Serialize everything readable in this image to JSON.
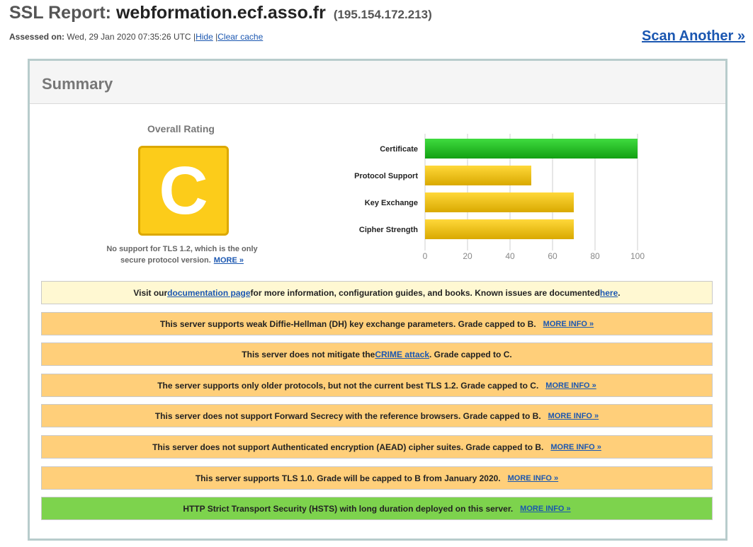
{
  "header": {
    "title_prefix": "SSL Report:",
    "hostname": "webformation.ecf.asso.fr",
    "ip": "(195.154.172.213)",
    "assessed_label": "Assessed on:",
    "assessed_value": "Wed, 29 Jan 2020 07:35:26 UTC",
    "separator": "|",
    "hide_link": "Hide",
    "clear_cache_link": "Clear cache",
    "scan_another": "Scan Another »"
  },
  "summary": {
    "title": "Summary",
    "overall_rating_label": "Overall Rating",
    "grade": "C",
    "grade_color": "#fccc1a",
    "grade_note": "No support for TLS 1.2, which is the only secure protocol version.",
    "grade_more": "MORE »"
  },
  "chart_data": {
    "type": "bar",
    "orientation": "horizontal",
    "categories": [
      "Certificate",
      "Protocol Support",
      "Key Exchange",
      "Cipher Strength"
    ],
    "values": [
      100,
      50,
      70,
      70
    ],
    "colors": [
      "#1cb81c",
      "#e6b800",
      "#e6b800",
      "#e6b800"
    ],
    "xlim": [
      0,
      100
    ],
    "ticks": [
      0,
      20,
      40,
      60,
      80,
      100
    ],
    "grid": true
  },
  "notices": [
    {
      "type": "info",
      "segments": [
        {
          "text": "Visit our "
        },
        {
          "text": "documentation page",
          "link": true
        },
        {
          "text": " for more information, configuration guides, and books. Known issues are documented "
        },
        {
          "text": "here",
          "link": true
        },
        {
          "text": "."
        }
      ]
    },
    {
      "type": "warn",
      "segments": [
        {
          "text": "This server supports weak Diffie-Hellman (DH) key exchange parameters. Grade capped to B."
        }
      ],
      "more": "MORE INFO »"
    },
    {
      "type": "warn",
      "segments": [
        {
          "text": "This server does not mitigate the "
        },
        {
          "text": "CRIME attack",
          "link": true
        },
        {
          "text": ". Grade capped to C."
        }
      ]
    },
    {
      "type": "warn",
      "segments": [
        {
          "text": "The server supports only older protocols, but not the current best TLS 1.2. Grade capped to C."
        }
      ],
      "more": "MORE INFO »"
    },
    {
      "type": "warn",
      "segments": [
        {
          "text": "This server does not support Forward Secrecy with the reference browsers. Grade capped to B."
        }
      ],
      "more": "MORE INFO »"
    },
    {
      "type": "warn",
      "segments": [
        {
          "text": "This server does not support Authenticated encryption (AEAD) cipher suites. Grade capped to B."
        }
      ],
      "more": "MORE INFO »"
    },
    {
      "type": "warn",
      "segments": [
        {
          "text": "This server supports TLS 1.0. Grade will be capped to B from January 2020."
        }
      ],
      "more": "MORE INFO »"
    },
    {
      "type": "good",
      "segments": [
        {
          "text": "HTTP Strict Transport Security (HSTS) with long duration deployed on this server."
        }
      ],
      "more": "MORE INFO »"
    }
  ]
}
